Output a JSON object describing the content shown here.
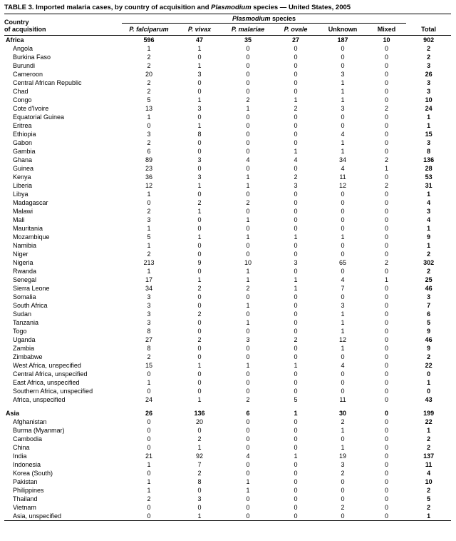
{
  "title": {
    "prefix": "TABLE 3. Imported malaria cases, by country of acquisition and ",
    "italic": "Plasmodium",
    "suffix": " species — United States, 2005"
  },
  "header": {
    "country_line1": "Country",
    "country_line2": "of acquisition",
    "group_italic": "Plasmodium",
    "group_rest": " species",
    "total": "Total",
    "columns": [
      {
        "label": "P. falciparum",
        "italic": true
      },
      {
        "label": "P. vivax",
        "italic": true
      },
      {
        "label": "P. malariae",
        "italic": true
      },
      {
        "label": "P. ovale",
        "italic": true
      },
      {
        "label": "Unknown",
        "italic": false
      },
      {
        "label": "Mixed",
        "italic": false
      }
    ]
  },
  "sections": [
    {
      "label": "Africa",
      "values": [
        596,
        47,
        35,
        27,
        187,
        10,
        902
      ],
      "rows": [
        {
          "label": "Angola",
          "values": [
            1,
            1,
            0,
            0,
            0,
            0,
            2
          ]
        },
        {
          "label": "Burkina Faso",
          "values": [
            2,
            0,
            0,
            0,
            0,
            0,
            2
          ]
        },
        {
          "label": "Burundi",
          "values": [
            2,
            1,
            0,
            0,
            0,
            0,
            3
          ]
        },
        {
          "label": "Cameroon",
          "values": [
            20,
            3,
            0,
            0,
            3,
            0,
            26
          ]
        },
        {
          "label": "Central African Republic",
          "values": [
            2,
            0,
            0,
            0,
            1,
            0,
            3
          ]
        },
        {
          "label": "Chad",
          "values": [
            2,
            0,
            0,
            0,
            1,
            0,
            3
          ]
        },
        {
          "label": "Congo",
          "values": [
            5,
            1,
            2,
            1,
            1,
            0,
            10
          ]
        },
        {
          "label": "Cote d'Ivoire",
          "values": [
            13,
            3,
            1,
            2,
            3,
            2,
            24
          ]
        },
        {
          "label": "Equatorial Guinea",
          "values": [
            1,
            0,
            0,
            0,
            0,
            0,
            1
          ]
        },
        {
          "label": "Eritrea",
          "values": [
            0,
            1,
            0,
            0,
            0,
            0,
            1
          ]
        },
        {
          "label": "Ethiopia",
          "values": [
            3,
            8,
            0,
            0,
            4,
            0,
            15
          ]
        },
        {
          "label": "Gabon",
          "values": [
            2,
            0,
            0,
            0,
            1,
            0,
            3
          ]
        },
        {
          "label": "Gambia",
          "values": [
            6,
            0,
            0,
            1,
            1,
            0,
            8
          ]
        },
        {
          "label": "Ghana",
          "values": [
            89,
            3,
            4,
            4,
            34,
            2,
            136
          ]
        },
        {
          "label": "Guinea",
          "values": [
            23,
            0,
            0,
            0,
            4,
            1,
            28
          ]
        },
        {
          "label": "Kenya",
          "values": [
            36,
            3,
            1,
            2,
            11,
            0,
            53
          ]
        },
        {
          "label": "Liberia",
          "values": [
            12,
            1,
            1,
            3,
            12,
            2,
            31
          ]
        },
        {
          "label": "Libya",
          "values": [
            1,
            0,
            0,
            0,
            0,
            0,
            1
          ]
        },
        {
          "label": "Madagascar",
          "values": [
            0,
            2,
            2,
            0,
            0,
            0,
            4
          ]
        },
        {
          "label": "Malawi",
          "values": [
            2,
            1,
            0,
            0,
            0,
            0,
            3
          ]
        },
        {
          "label": "Mali",
          "values": [
            3,
            0,
            1,
            0,
            0,
            0,
            4
          ]
        },
        {
          "label": "Mauritania",
          "values": [
            1,
            0,
            0,
            0,
            0,
            0,
            1
          ]
        },
        {
          "label": "Mozambique",
          "values": [
            5,
            1,
            1,
            1,
            1,
            0,
            9
          ]
        },
        {
          "label": "Namibia",
          "values": [
            1,
            0,
            0,
            0,
            0,
            0,
            1
          ]
        },
        {
          "label": "Niger",
          "values": [
            2,
            0,
            0,
            0,
            0,
            0,
            2
          ]
        },
        {
          "label": "Nigeria",
          "values": [
            213,
            9,
            10,
            3,
            65,
            2,
            302
          ]
        },
        {
          "label": "Rwanda",
          "values": [
            1,
            0,
            1,
            0,
            0,
            0,
            2
          ]
        },
        {
          "label": "Senegal",
          "values": [
            17,
            1,
            1,
            1,
            4,
            1,
            25
          ]
        },
        {
          "label": "Sierra Leone",
          "values": [
            34,
            2,
            2,
            1,
            7,
            0,
            46
          ]
        },
        {
          "label": "Somalia",
          "values": [
            3,
            0,
            0,
            0,
            0,
            0,
            3
          ]
        },
        {
          "label": "South Africa",
          "values": [
            3,
            0,
            1,
            0,
            3,
            0,
            7
          ]
        },
        {
          "label": "Sudan",
          "values": [
            3,
            2,
            0,
            0,
            1,
            0,
            6
          ]
        },
        {
          "label": "Tanzania",
          "values": [
            3,
            0,
            1,
            0,
            1,
            0,
            5
          ]
        },
        {
          "label": "Togo",
          "values": [
            8,
            0,
            0,
            0,
            1,
            0,
            9
          ]
        },
        {
          "label": "Uganda",
          "values": [
            27,
            2,
            3,
            2,
            12,
            0,
            46
          ]
        },
        {
          "label": "Zambia",
          "values": [
            8,
            0,
            0,
            0,
            1,
            0,
            9
          ]
        },
        {
          "label": "Zimbabwe",
          "values": [
            2,
            0,
            0,
            0,
            0,
            0,
            2
          ]
        },
        {
          "label": "West Africa, unspecified",
          "values": [
            15,
            1,
            1,
            1,
            4,
            0,
            22
          ]
        },
        {
          "label": "Central Africa, unspecified",
          "values": [
            0,
            0,
            0,
            0,
            0,
            0,
            0
          ]
        },
        {
          "label": "East Africa, unspecified",
          "values": [
            1,
            0,
            0,
            0,
            0,
            0,
            1
          ]
        },
        {
          "label": "Southern Africa, unspecified",
          "values": [
            0,
            0,
            0,
            0,
            0,
            0,
            0
          ]
        },
        {
          "label": "Africa, unspecified",
          "values": [
            24,
            1,
            2,
            5,
            11,
            0,
            43
          ]
        }
      ]
    },
    {
      "label": "Asia",
      "values": [
        26,
        136,
        6,
        1,
        30,
        0,
        199
      ],
      "rows": [
        {
          "label": "Afghanistan",
          "values": [
            0,
            20,
            0,
            0,
            2,
            0,
            22
          ]
        },
        {
          "label": "Burma (Myanmar)",
          "values": [
            0,
            0,
            0,
            0,
            1,
            0,
            1
          ]
        },
        {
          "label": "Cambodia",
          "values": [
            0,
            2,
            0,
            0,
            0,
            0,
            2
          ]
        },
        {
          "label": "China",
          "values": [
            0,
            1,
            0,
            0,
            1,
            0,
            2
          ]
        },
        {
          "label": "India",
          "values": [
            21,
            92,
            4,
            1,
            19,
            0,
            137
          ]
        },
        {
          "label": "Indonesia",
          "values": [
            1,
            7,
            0,
            0,
            3,
            0,
            11
          ]
        },
        {
          "label": "Korea (South)",
          "values": [
            0,
            2,
            0,
            0,
            2,
            0,
            4
          ]
        },
        {
          "label": "Pakistan",
          "values": [
            1,
            8,
            1,
            0,
            0,
            0,
            10
          ]
        },
        {
          "label": "Philippines",
          "values": [
            1,
            0,
            1,
            0,
            0,
            0,
            2
          ]
        },
        {
          "label": "Thailand",
          "values": [
            2,
            3,
            0,
            0,
            0,
            0,
            5
          ]
        },
        {
          "label": "Vietnam",
          "values": [
            0,
            0,
            0,
            0,
            2,
            0,
            2
          ]
        },
        {
          "label": "Asia, unspecified",
          "values": [
            0,
            1,
            0,
            0,
            0,
            0,
            1
          ]
        }
      ]
    }
  ]
}
